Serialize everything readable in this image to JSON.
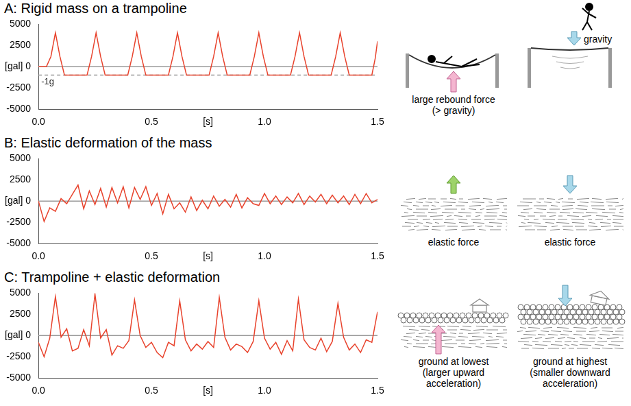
{
  "chart_data": [
    {
      "type": "line",
      "title": "A: Rigid mass on a trampoline",
      "color": "#e8432d",
      "grid": false,
      "x": [
        0,
        0.035,
        0.055,
        0.075,
        0.095,
        0.115,
        0.215,
        0.235,
        0.255,
        0.275,
        0.295,
        0.395,
        0.415,
        0.435,
        0.455,
        0.475,
        0.575,
        0.595,
        0.615,
        0.635,
        0.655,
        0.755,
        0.775,
        0.795,
        0.815,
        0.835,
        0.935,
        0.955,
        0.975,
        0.995,
        1.015,
        1.115,
        1.135,
        1.155,
        1.175,
        1.195,
        1.295,
        1.315,
        1.335,
        1.355,
        1.375,
        1.475,
        1.49,
        1.5
      ],
      "values": [
        0,
        0,
        1200,
        4000,
        1200,
        -980,
        -980,
        1200,
        4000,
        1200,
        -980,
        -980,
        1200,
        4000,
        1200,
        -980,
        -980,
        1200,
        4000,
        1200,
        -980,
        -980,
        1200,
        4000,
        1200,
        -980,
        -980,
        1200,
        4000,
        1200,
        -980,
        -980,
        1200,
        4000,
        1200,
        -980,
        -980,
        1200,
        4000,
        1200,
        -980,
        -980,
        1000,
        3000
      ],
      "xlim": [
        0,
        1.5
      ],
      "xticks": [
        {
          "value": 0,
          "label": "0.0"
        },
        {
          "value": 0.5,
          "label": "0.5"
        },
        {
          "value": 0.75,
          "label": "[s]"
        },
        {
          "value": 1,
          "label": "1.0"
        },
        {
          "value": 1.5,
          "label": "1.5"
        }
      ],
      "ylim": [
        -5000,
        5000
      ],
      "yticks": [
        -5000,
        -2500,
        {
          "value": 0,
          "label": "[gal] 0"
        },
        2500,
        5000
      ],
      "reference_lines": [
        {
          "value": 0,
          "line_style": "solid",
          "color": "#999999"
        },
        {
          "value": -980,
          "label": "-1g",
          "line_style": "dashed",
          "color": "#999999"
        }
      ],
      "annotations": [
        [
          "large rebound force",
          "(> gravity)"
        ],
        [
          "gravity"
        ]
      ]
    },
    {
      "type": "line",
      "title": "B: Elastic deformation of the mass",
      "color": "#e8432d",
      "grid": false,
      "x": [
        0,
        0.025,
        0.05,
        0.075,
        0.1,
        0.125,
        0.15,
        0.175,
        0.2,
        0.225,
        0.25,
        0.275,
        0.3,
        0.325,
        0.35,
        0.375,
        0.4,
        0.425,
        0.45,
        0.475,
        0.5,
        0.525,
        0.55,
        0.575,
        0.6,
        0.625,
        0.65,
        0.675,
        0.7,
        0.725,
        0.75,
        0.775,
        0.8,
        0.825,
        0.85,
        0.875,
        0.9,
        0.925,
        0.95,
        0.975,
        1,
        1.025,
        1.05,
        1.075,
        1.1,
        1.125,
        1.15,
        1.175,
        1.2,
        1.225,
        1.25,
        1.275,
        1.3,
        1.325,
        1.35,
        1.375,
        1.4,
        1.425,
        1.45,
        1.475,
        1.5
      ],
      "values": [
        0,
        -2400,
        -800,
        -1200,
        300,
        -300,
        800,
        1900,
        -900,
        1200,
        -400,
        1500,
        -700,
        1600,
        -200,
        1700,
        -800,
        1600,
        200,
        1700,
        -500,
        900,
        -1500,
        800,
        -900,
        -200,
        -1300,
        500,
        -1100,
        100,
        -900,
        600,
        -600,
        200,
        -700,
        800,
        -800,
        400,
        -300,
        -500,
        900,
        -300,
        600,
        -400,
        500,
        -200,
        900,
        -400,
        600,
        -100,
        800,
        -300,
        700,
        -200,
        600,
        -400,
        800,
        -300,
        900,
        -200,
        200
      ],
      "xlim": [
        0,
        1.5
      ],
      "xticks": [
        {
          "value": 0,
          "label": "0.0"
        },
        {
          "value": 0.5,
          "label": "0.5"
        },
        {
          "value": 0.75,
          "label": "[s]"
        },
        {
          "value": 1,
          "label": "1.0"
        },
        {
          "value": 1.5,
          "label": "1.5"
        }
      ],
      "ylim": [
        -5000,
        5000
      ],
      "yticks": [
        -5000,
        -2500,
        {
          "value": 0,
          "label": "[gal] 0"
        },
        2500,
        5000
      ],
      "reference_lines": [
        {
          "value": 0,
          "line_style": "solid",
          "color": "#999999"
        }
      ],
      "annotations": [
        [
          "elastic force"
        ],
        [
          "elastic force"
        ]
      ]
    },
    {
      "type": "line",
      "title": "C: Trampoline + elastic deformation",
      "color": "#e8432d",
      "grid": false,
      "x": [
        0,
        0.025,
        0.05,
        0.075,
        0.1,
        0.125,
        0.15,
        0.175,
        0.2,
        0.225,
        0.25,
        0.275,
        0.3,
        0.325,
        0.35,
        0.375,
        0.4,
        0.425,
        0.45,
        0.475,
        0.5,
        0.525,
        0.55,
        0.575,
        0.6,
        0.625,
        0.65,
        0.675,
        0.7,
        0.725,
        0.75,
        0.775,
        0.8,
        0.825,
        0.85,
        0.875,
        0.9,
        0.925,
        0.95,
        0.975,
        1,
        1.025,
        1.05,
        1.075,
        1.1,
        1.125,
        1.15,
        1.175,
        1.2,
        1.225,
        1.25,
        1.275,
        1.3,
        1.325,
        1.35,
        1.375,
        1.4,
        1.425,
        1.45,
        1.475,
        1.5
      ],
      "values": [
        -800,
        -2500,
        -300,
        4600,
        -200,
        800,
        -1800,
        -1500,
        700,
        -1200,
        4900,
        -300,
        700,
        -2300,
        -1200,
        -1500,
        -600,
        4200,
        0,
        -1400,
        -800,
        -2000,
        -2600,
        -800,
        -1200,
        4100,
        -500,
        -1800,
        -1000,
        -1600,
        -700,
        -1400,
        4500,
        -200,
        -1700,
        -1000,
        -1300,
        -2000,
        -700,
        4100,
        -300,
        -1600,
        -800,
        -2200,
        -600,
        -1800,
        4300,
        -500,
        -1400,
        -1700,
        -300,
        -1900,
        -700,
        3800,
        -200,
        -1700,
        -1000,
        -2000,
        -500,
        -800,
        2800
      ],
      "xlim": [
        0,
        1.5
      ],
      "xticks": [
        {
          "value": 0,
          "label": "0.0"
        },
        {
          "value": 0.5,
          "label": "0.5"
        },
        {
          "value": 0.75,
          "label": "[s]"
        },
        {
          "value": 1,
          "label": "1.0"
        },
        {
          "value": 1.5,
          "label": "1.5"
        }
      ],
      "ylim": [
        -5000,
        5000
      ],
      "yticks": [
        -5000,
        -2500,
        {
          "value": 0,
          "label": "[gal] 0"
        },
        2500,
        5000
      ],
      "reference_lines": [
        {
          "value": 0,
          "line_style": "solid",
          "color": "#999999"
        }
      ],
      "annotations": [
        [
          "ground at lowest",
          "(larger upward",
          "acceleration)"
        ],
        [
          "ground at highest",
          "(smaller downward",
          "acceleration)"
        ]
      ]
    }
  ]
}
